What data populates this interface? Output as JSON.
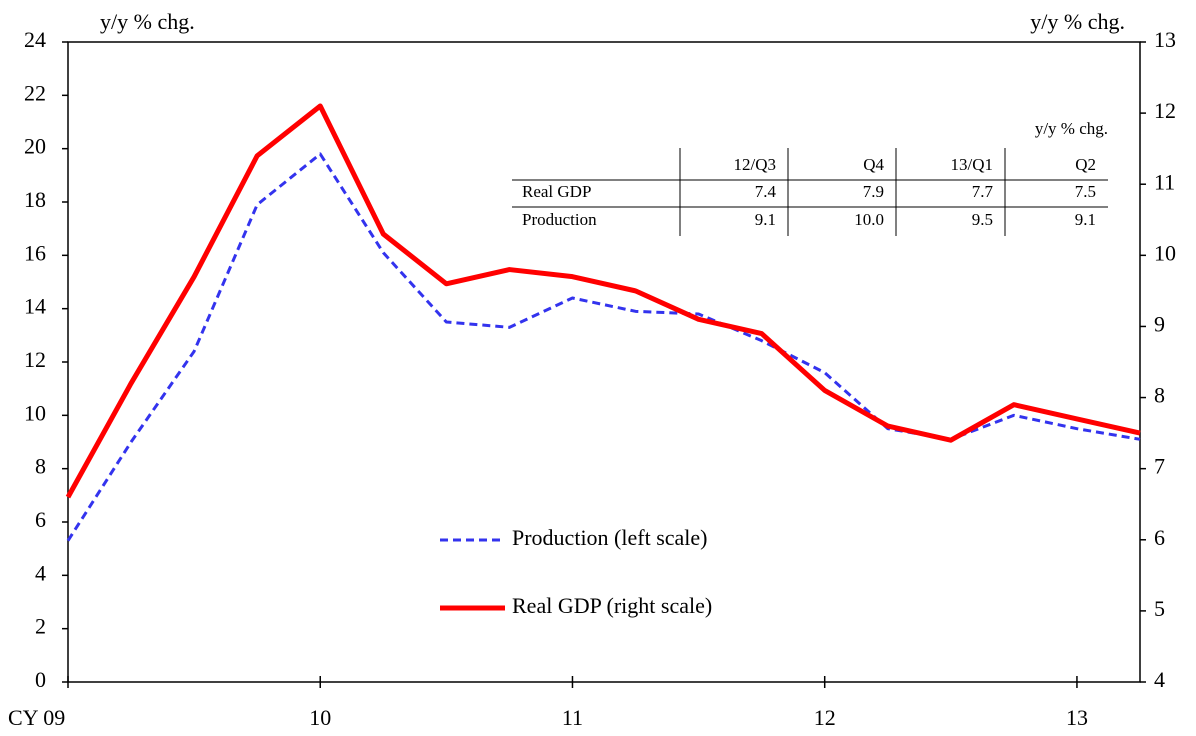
{
  "chart_data": {
    "type": "line",
    "ylabel": "y/y % chg.",
    "y2label": "y/y % chg.",
    "x": [
      2009,
      2009.25,
      2009.5,
      2009.75,
      2010,
      2010.25,
      2010.5,
      2010.75,
      2011,
      2011.25,
      2011.5,
      2011.75,
      2012,
      2012.25,
      2012.5,
      2012.75,
      2013,
      2013.25
    ],
    "xlim": [
      2009,
      2013.25
    ],
    "xticks": [
      {
        "value": 2009,
        "label": "CY 09"
      },
      {
        "value": 2010,
        "label": "10"
      },
      {
        "value": 2011,
        "label": "11"
      },
      {
        "value": 2012,
        "label": "12"
      },
      {
        "value": 2013,
        "label": "13"
      }
    ],
    "ylim": [
      0,
      24
    ],
    "yticks": [
      0,
      2,
      4,
      6,
      8,
      10,
      12,
      14,
      16,
      18,
      20,
      22,
      24
    ],
    "y2lim": [
      4,
      13
    ],
    "y2ticks": [
      4,
      5,
      6,
      7,
      8,
      9,
      10,
      11,
      12,
      13
    ],
    "series": [
      {
        "name": "Production (left scale)",
        "color": "#3333ee",
        "dash": true,
        "values": [
          5.3,
          9.0,
          12.4,
          17.9,
          19.8,
          16.1,
          13.5,
          13.3,
          14.4,
          13.9,
          13.8,
          12.8,
          11.6,
          9.5,
          9.1,
          10.0,
          9.5,
          9.1
        ]
      },
      {
        "name": "Real GDP (right scale)",
        "color": "#ff0000",
        "axis": "y2",
        "values": [
          6.6,
          8.2,
          9.7,
          11.4,
          12.1,
          10.3,
          9.6,
          9.8,
          9.7,
          9.5,
          9.1,
          8.9,
          8.1,
          7.6,
          7.4,
          7.9,
          7.7,
          7.5
        ]
      }
    ],
    "table": {
      "title": "y/y % chg.",
      "columns": [
        "12/Q3",
        "Q4",
        "13/Q1",
        "Q2"
      ],
      "rows": [
        [
          "Real GDP",
          "7.4",
          "7.9",
          "7.7",
          "7.5"
        ],
        [
          "Production",
          "9.1",
          "10.0",
          "9.5",
          "9.1"
        ]
      ]
    }
  }
}
